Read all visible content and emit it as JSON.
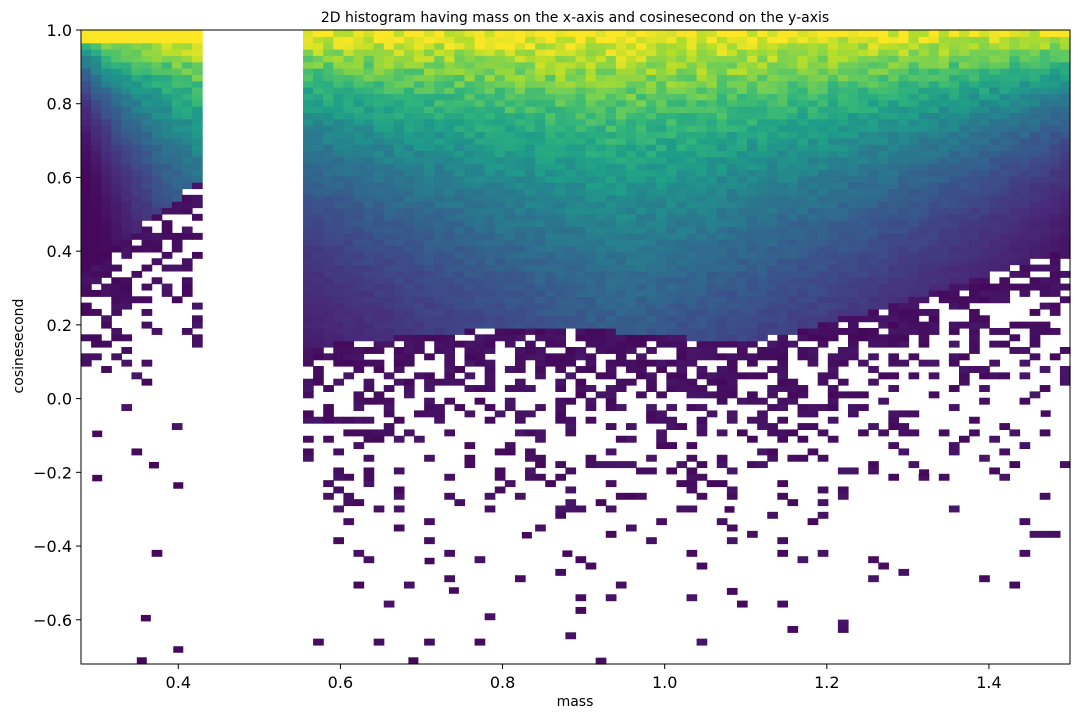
{
  "chart_data": {
    "type": "heatmap",
    "title": "2D histogram having mass on the x-axis and cosinesecond on the y-axis",
    "xlabel": "mass",
    "ylabel": "cosinesecond",
    "xlim": [
      0.28,
      1.5
    ],
    "ylim": [
      -0.72,
      1.0
    ],
    "xticks": [
      0.4,
      0.6,
      0.8,
      1.0,
      1.2,
      1.4
    ],
    "yticks": [
      1.0,
      0.8,
      0.6,
      0.4,
      0.2,
      0.0,
      -0.2,
      -0.4,
      -0.6
    ],
    "xtick_labels": [
      "0.4",
      "0.6",
      "0.8",
      "1.0",
      "1.2",
      "1.4"
    ],
    "ytick_labels": [
      "1.0",
      "0.8",
      "0.6",
      "0.4",
      "0.2",
      "0.0",
      "−0.2",
      "−0.4",
      "−0.6"
    ],
    "colormap": "viridis",
    "grid": false,
    "empty_mass_range": [
      0.435,
      0.56
    ],
    "x_bin_count": 98,
    "y_bin_count": 100,
    "outliers": [
      [
        0.36,
        -0.595
      ],
      [
        0.355,
        -0.71
      ],
      [
        0.4,
        -0.68
      ],
      [
        0.69,
        -0.71
      ],
      [
        0.74,
        -0.52
      ],
      [
        0.71,
        -0.44
      ],
      [
        0.88,
        -0.42
      ],
      [
        0.83,
        -0.37
      ],
      [
        0.3,
        -0.095
      ],
      [
        0.3,
        -0.215
      ],
      [
        0.37,
        -0.18
      ],
      [
        0.4,
        -0.235
      ],
      [
        1.08,
        -0.3
      ],
      [
        1.32,
        -0.2
      ],
      [
        1.47,
        -0.04
      ]
    ]
  }
}
